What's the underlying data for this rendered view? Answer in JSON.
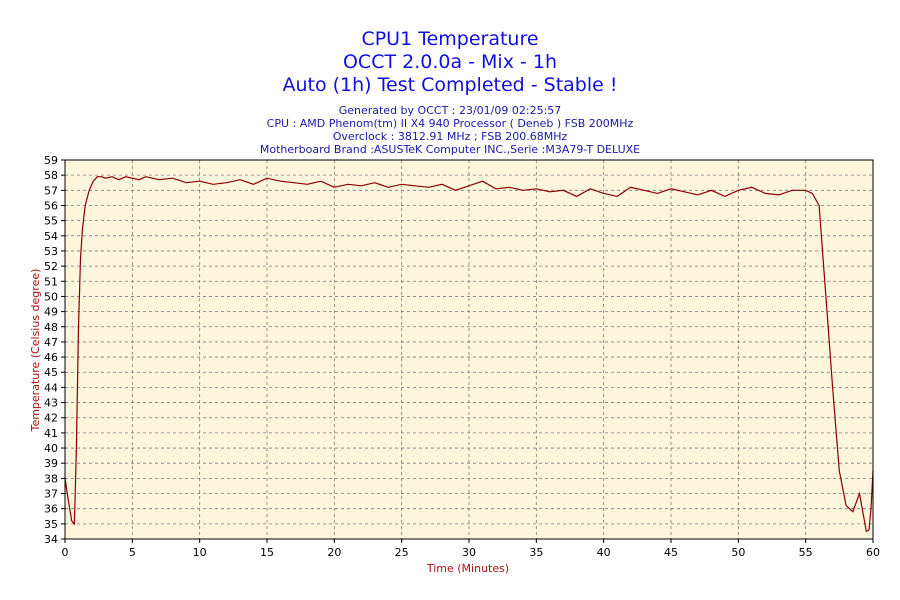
{
  "chart_data": {
    "type": "line",
    "title_lines": [
      "CPU1 Temperature",
      "OCCT 2.0.0a - Mix - 1h",
      "Auto (1h) Test Completed - Stable !"
    ],
    "subtitle_lines": [
      "Generated by OCCT : 23/01/09 02:25:57",
      "CPU : AMD Phenom(tm) II X4 940 Processor ( Deneb ) FSB 200MHz",
      "Overclock : 3812.91 MHz ; FSB 200.68MHz",
      "Motherboard Brand :ASUSTeK Computer INC.,Serie :M3A79-T DELUXE"
    ],
    "xlabel": "Time (Minutes)",
    "ylabel": "Temperature (Celsius degree)",
    "xlim": [
      0,
      60
    ],
    "ylim": [
      34,
      59
    ],
    "x_ticks": [
      0,
      5,
      10,
      15,
      20,
      25,
      30,
      35,
      40,
      45,
      50,
      55,
      60
    ],
    "y_ticks": [
      34,
      35,
      36,
      37,
      38,
      39,
      40,
      41,
      42,
      43,
      44,
      45,
      46,
      47,
      48,
      49,
      50,
      51,
      52,
      53,
      54,
      55,
      56,
      57,
      58,
      59
    ],
    "grid": true,
    "series": [
      {
        "color": "#8b0000",
        "x": [
          0,
          0.25,
          0.5,
          0.7,
          0.85,
          1.0,
          1.15,
          1.3,
          1.5,
          1.8,
          2.1,
          2.4,
          2.7,
          3.0,
          3.5,
          4.0,
          4.5,
          5.0,
          5.5,
          6.0,
          7.0,
          8.0,
          9.0,
          10.0,
          11.0,
          12.0,
          13.0,
          14.0,
          15.0,
          16.0,
          17.0,
          18.0,
          19.0,
          20.0,
          21.0,
          22.0,
          23.0,
          24.0,
          25.0,
          26.0,
          27.0,
          28.0,
          29.0,
          30.0,
          31.0,
          32.0,
          33.0,
          34.0,
          35.0,
          36.0,
          37.0,
          38.0,
          39.0,
          40.0,
          41.0,
          42.0,
          43.0,
          44.0,
          45.0,
          46.0,
          47.0,
          48.0,
          49.0,
          50.0,
          51.0,
          52.0,
          53.0,
          54.0,
          55.0,
          55.5,
          56.0,
          56.5,
          57.0,
          57.5,
          58.0,
          58.5,
          59.0,
          59.3,
          59.5,
          59.7,
          59.85,
          60.0
        ],
        "values": [
          38,
          36.5,
          35.2,
          35.0,
          40.0,
          48.0,
          52.5,
          54.5,
          56.0,
          57.0,
          57.6,
          57.9,
          57.9,
          57.8,
          57.9,
          57.7,
          57.9,
          57.8,
          57.7,
          57.9,
          57.7,
          57.8,
          57.5,
          57.6,
          57.4,
          57.5,
          57.7,
          57.4,
          57.8,
          57.6,
          57.5,
          57.4,
          57.6,
          57.2,
          57.4,
          57.3,
          57.5,
          57.2,
          57.4,
          57.3,
          57.2,
          57.4,
          57.0,
          57.3,
          57.6,
          57.1,
          57.2,
          57.0,
          57.1,
          56.9,
          57.0,
          56.6,
          57.1,
          56.8,
          56.6,
          57.2,
          57.0,
          56.8,
          57.1,
          56.9,
          56.7,
          57.0,
          56.6,
          57.0,
          57.2,
          56.8,
          56.7,
          57.0,
          57.0,
          56.8,
          56.0,
          50.0,
          44.0,
          38.5,
          36.2,
          35.8,
          37.0,
          35.5,
          34.5,
          34.6,
          36.0,
          38.5
        ]
      }
    ],
    "colors": {
      "plot_background": "#fdf5dc",
      "grid": "#7a7a7a",
      "line": "#8b0000",
      "title": "#1010e0",
      "subtitle": "#1a1aa8",
      "axis_label": "#b01010"
    }
  }
}
